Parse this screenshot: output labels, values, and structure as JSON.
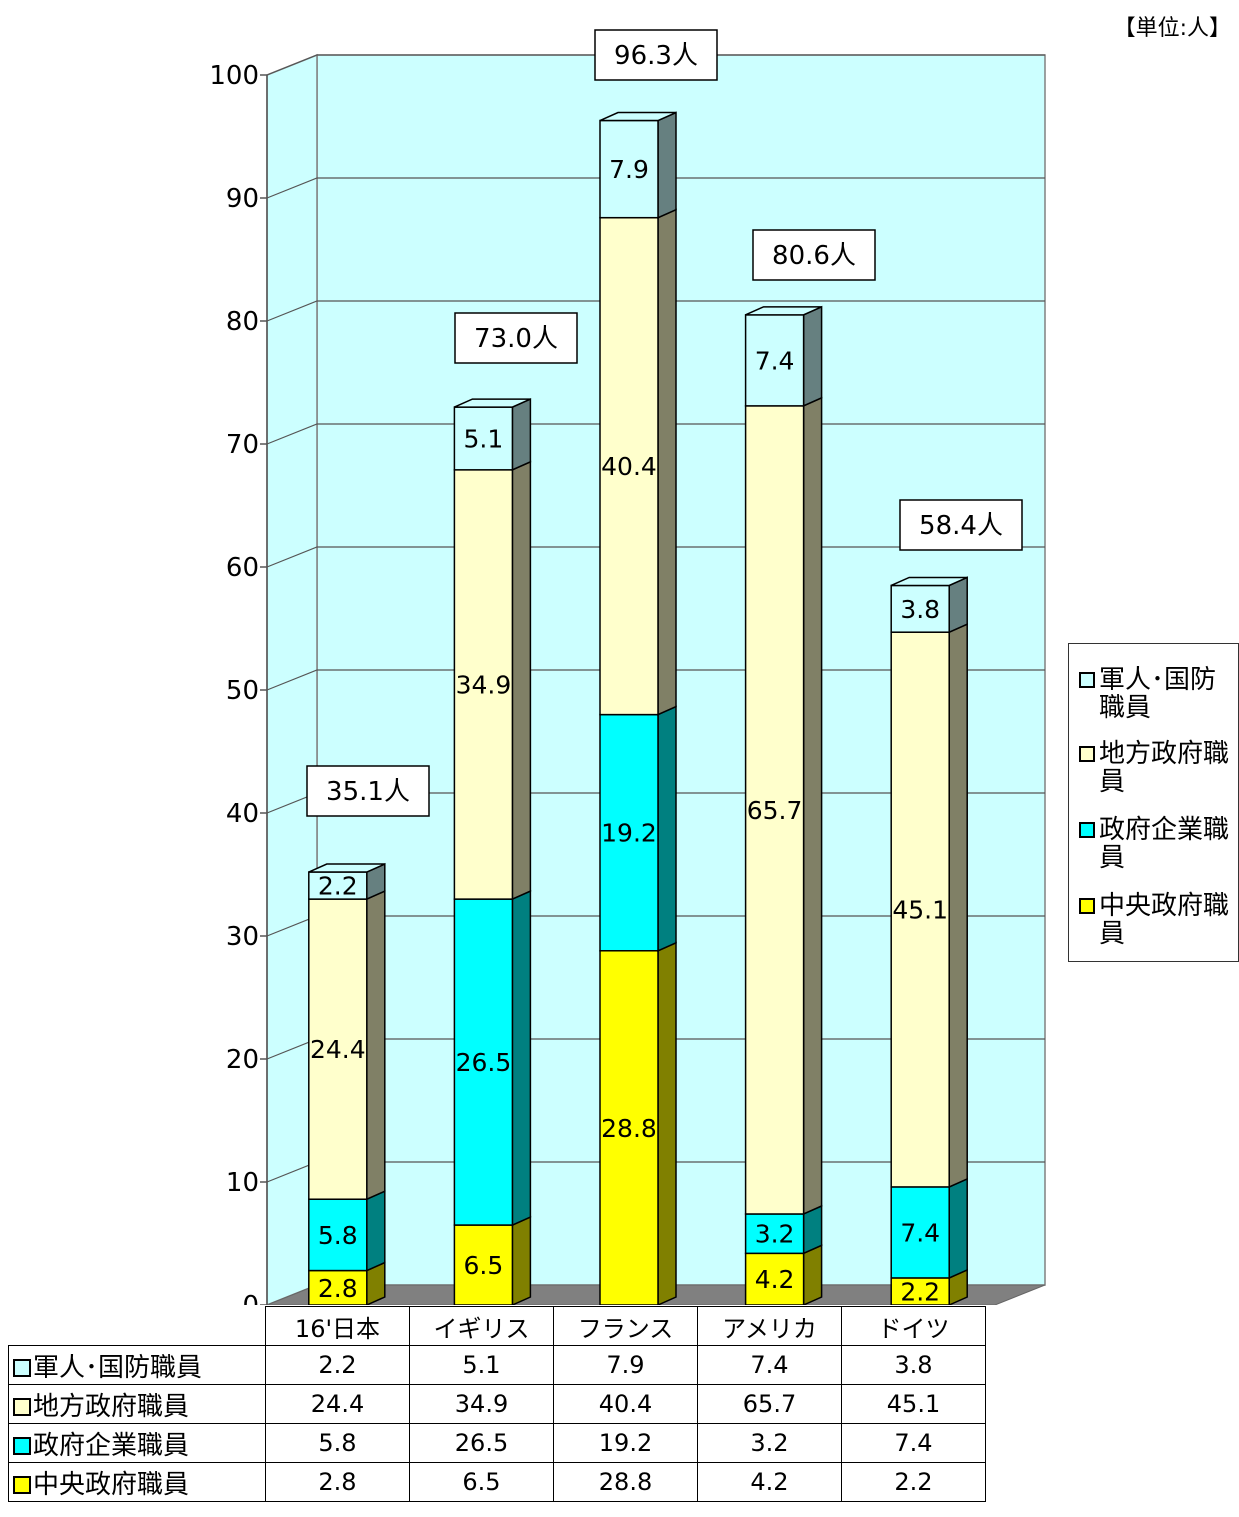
{
  "unit_label": "【単位:人】",
  "legend": [
    {
      "label": "軍人･国防職員",
      "color": "#ccffff"
    },
    {
      "label": "地方政府職員",
      "color": "#ffffcc"
    },
    {
      "label": "政府企業職員",
      "color": "#00ffff"
    },
    {
      "label": "中央政府職員",
      "color": "#ffff00"
    }
  ],
  "table": {
    "headers": [
      "16'日本",
      "イギリス",
      "フランス",
      "アメリカ",
      "ドイツ"
    ],
    "rows": [
      {
        "label": "軍人･国防職員",
        "color": "#ccffff",
        "values": [
          "2.2",
          "5.1",
          "7.9",
          "7.4",
          "3.8"
        ]
      },
      {
        "label": "地方政府職員",
        "color": "#ffffcc",
        "values": [
          "24.4",
          "34.9",
          "40.4",
          "65.7",
          "45.1"
        ]
      },
      {
        "label": "政府企業職員",
        "color": "#00ffff",
        "values": [
          "5.8",
          "26.5",
          "19.2",
          "3.2",
          "7.4"
        ]
      },
      {
        "label": "中央政府職員",
        "color": "#ffff00",
        "values": [
          "2.8",
          "6.5",
          "28.8",
          "4.2",
          "2.2"
        ]
      }
    ]
  },
  "chart_data": {
    "type": "bar",
    "stacked": true,
    "three_d": true,
    "categories": [
      "16'日本",
      "イギリス",
      "フランス",
      "アメリカ",
      "ドイツ"
    ],
    "series": [
      {
        "name": "中央政府職員",
        "values": [
          2.8,
          6.5,
          28.8,
          4.2,
          2.2
        ],
        "color": "#ffff00",
        "side_color": "#808000"
      },
      {
        "name": "政府企業職員",
        "values": [
          5.8,
          26.5,
          19.2,
          3.2,
          7.4
        ],
        "color": "#00ffff",
        "side_color": "#008080"
      },
      {
        "name": "地方政府職員",
        "values": [
          24.4,
          34.9,
          40.4,
          65.7,
          45.1
        ],
        "color": "#ffffcc",
        "side_color": "#808066"
      },
      {
        "name": "軍人･国防職員",
        "values": [
          2.2,
          5.1,
          7.9,
          7.4,
          3.8
        ],
        "color": "#ccffff",
        "side_color": "#668080"
      }
    ],
    "totals": [
      "35.1人",
      "73.0人",
      "96.3人",
      "80.6人",
      "58.4人"
    ],
    "ylim": [
      0,
      100
    ],
    "yticks": [
      0,
      10,
      20,
      30,
      40,
      50,
      60,
      70,
      80,
      90,
      100
    ],
    "grid": true,
    "wall_color": "#ccffff",
    "floor_color": "#808080",
    "legend_position": "right"
  }
}
